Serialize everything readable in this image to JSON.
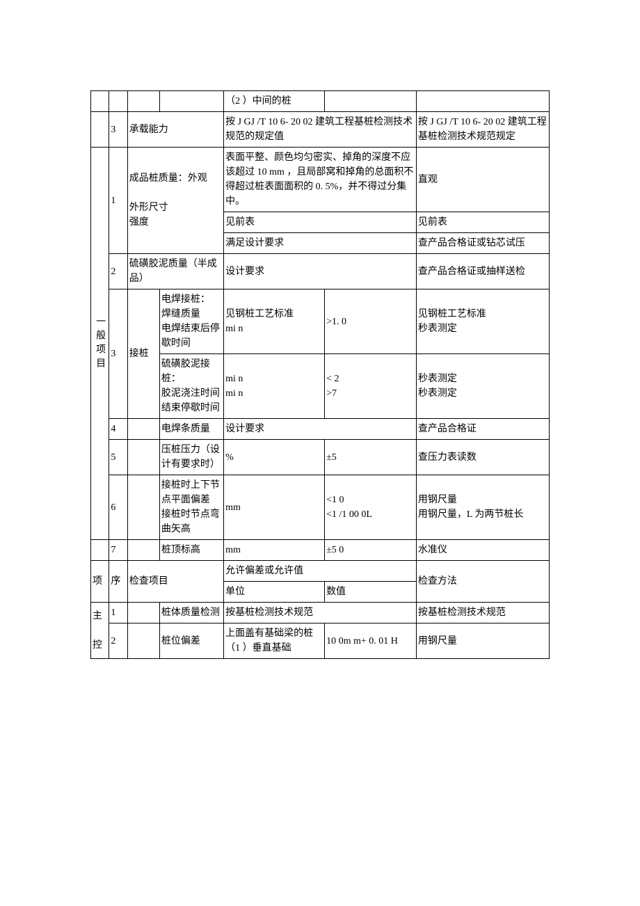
{
  "col_widths": [
    "4%",
    "4%",
    "7%",
    "14%",
    "22%",
    "20%",
    "29%"
  ],
  "rows": [
    {
      "c5": "（2 ）中间的桩"
    },
    {
      "c2": "3",
      "c3": "承载能力",
      "c3_span": 2,
      "c5": "按 J GJ /T 10 6- 20 02 建筑工程基桩检测技术规范的规定值",
      "c5_span": 2,
      "c7": "按 J GJ /T 10 6- 20 02 建筑工程基桩检测技术规范规定"
    },
    {
      "c1": "一般项目",
      "c1_vert": true,
      "c1_rowspan": 9,
      "c2": "1",
      "c2_rowspan": 3,
      "c3": "成品桩质量：外观\n\n外形尺寸\n强度",
      "c3_span": 2,
      "c3_rowspan": 3,
      "c5": "表面平整、颜色均匀密实、掉角的深度不应该超过 10 mm ，且局部窝和掉角的总面积不得超过桩表面面积的 0. 5%，并不得过分集中。",
      "c5_span": 2,
      "c7": "直观"
    },
    {
      "c5": "见前表",
      "c5_span": 2,
      "c7": "见前表"
    },
    {
      "c5": "满足设计要求",
      "c5_span": 2,
      "c7": "查产品合格证或钻芯试压"
    },
    {
      "c2": "2",
      "c3": "硫磺胶泥质量（半成品）",
      "c3_span": 2,
      "c5": "设计要求",
      "c5_span": 2,
      "c7": "查产品合格证或抽样送检"
    },
    {
      "c2": "3",
      "c2_rowspan": 2,
      "c3": "接桩",
      "c3_rowspan": 2,
      "c4": "电焊接桩：\n焊缝质量\n电焊结束后停歇时间",
      "c5": "见钢桩工艺标准\nmi n",
      "c6": ">1. 0",
      "c7": "见钢桩工艺标准\n秒表测定"
    },
    {
      "c4": "硫磺胶泥接桩：\n胶泥浇注时间\n结束停歇时间",
      "c5": "mi n\nmi n",
      "c6": "< 2\n>7",
      "c7": "秒表测定\n秒表测定"
    },
    {
      "c2": "4",
      "c4": "电焊条质量",
      "c5": "设计要求",
      "c5_span": 2,
      "c7": "查产品合格证"
    },
    {
      "c2": "5",
      "c4": "压桩压力（设计有要求时）",
      "c5": "%",
      "c6": "±5",
      "c7": "查压力表读数"
    },
    {
      "c2": "6",
      "c4": "接桩时上下节点平面偏差\n接桩时节点弯曲矢高",
      "c5": "mm",
      "c6": "<1 0\n<1 /1 00 0L",
      "c7": "用钢尺量\n用钢尺量，L 为两节桩长"
    },
    {
      "c2": "7",
      "c4": "桩顶标高",
      "c5": "mm",
      "c6": "±5 0",
      "c7": "水准仪"
    },
    {
      "c1": "项",
      "c1_rowspan": 2,
      "c2": "序",
      "c2_rowspan": 2,
      "c3": "检查项目",
      "c3_span": 2,
      "c3_rowspan": 2,
      "c5": "允许偏差或允许值",
      "c5_span": 2,
      "c7": "检查方法",
      "c7_rowspan": 2
    },
    {
      "c5": "单位",
      "c6": "数值"
    },
    {
      "c1": "主\n\n控",
      "c1_rowspan": 2,
      "c2": "1",
      "c4": "桩体质量检测",
      "c5": "按基桩检测技术规范",
      "c5_span": 2,
      "c7": "按基桩检测技术规范"
    },
    {
      "c2": "2",
      "c4": "桩位偏差",
      "c5": "上面盖有基础梁的桩\n（1 ）垂直基础",
      "c6": "10 0m m+ 0. 01 H",
      "c7": "用钢尺量"
    }
  ]
}
